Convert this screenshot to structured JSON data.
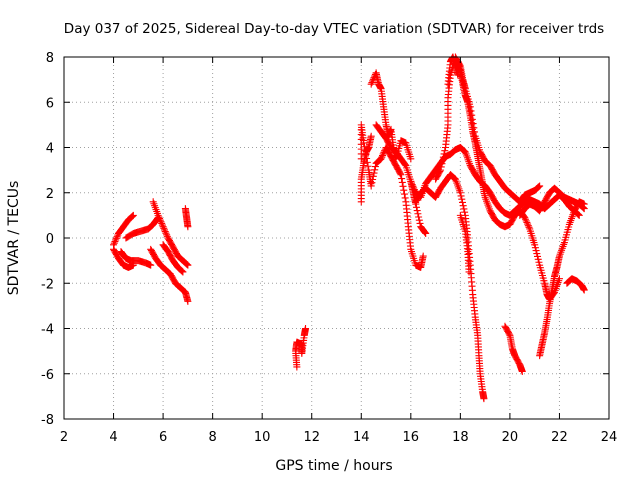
{
  "chart_data": {
    "type": "scatter",
    "title": "Day 037 of 2025, Sidereal Day-to-day VTEC variation (SDTVAR) for receiver trds",
    "xlabel": "GPS time / hours",
    "ylabel": "SDTVAR / TECUs",
    "xlim": [
      2,
      24
    ],
    "ylim": [
      -8,
      8
    ],
    "xticks": [
      "2",
      "4",
      "6",
      "8",
      "10",
      "12",
      "14",
      "16",
      "18",
      "20",
      "22",
      "24"
    ],
    "yticks": [
      "-8",
      "-6",
      "-4",
      "-2",
      "0",
      "2",
      "4",
      "6",
      "8"
    ],
    "grid": true,
    "marker": "+",
    "series": [
      {
        "name": "SDTVAR",
        "color": "#ff0000",
        "tracks": [
          [
            [
              4.0,
              -0.3
            ],
            [
              4.2,
              0.2
            ],
            [
              4.4,
              0.5
            ],
            [
              4.6,
              0.8
            ],
            [
              4.8,
              1.0
            ]
          ],
          [
            [
              4.0,
              -0.5
            ],
            [
              4.2,
              -0.9
            ],
            [
              4.4,
              -1.2
            ],
            [
              4.6,
              -1.3
            ],
            [
              4.8,
              -1.2
            ]
          ],
          [
            [
              4.3,
              -0.6
            ],
            [
              4.5,
              -0.9
            ],
            [
              4.7,
              -1.0
            ],
            [
              5.0,
              -1.0
            ],
            [
              5.3,
              -1.1
            ],
            [
              5.5,
              -1.2
            ]
          ],
          [
            [
              4.5,
              0.0
            ],
            [
              4.8,
              0.2
            ],
            [
              5.1,
              0.3
            ],
            [
              5.4,
              0.4
            ],
            [
              5.6,
              0.6
            ],
            [
              5.8,
              0.9
            ]
          ],
          [
            [
              5.6,
              1.6
            ],
            [
              5.8,
              1.0
            ],
            [
              6.0,
              0.5
            ],
            [
              6.2,
              0.0
            ],
            [
              6.4,
              -0.4
            ],
            [
              6.6,
              -0.8
            ],
            [
              6.8,
              -1.0
            ],
            [
              7.0,
              -1.2
            ]
          ],
          [
            [
              5.5,
              -0.5
            ],
            [
              5.7,
              -0.9
            ],
            [
              5.9,
              -1.2
            ],
            [
              6.1,
              -1.4
            ],
            [
              6.3,
              -1.6
            ],
            [
              6.5,
              -2.0
            ],
            [
              6.7,
              -2.2
            ],
            [
              6.9,
              -2.4
            ],
            [
              7.0,
              -2.8
            ]
          ],
          [
            [
              6.0,
              -0.3
            ],
            [
              6.2,
              -0.6
            ],
            [
              6.4,
              -1.0
            ],
            [
              6.6,
              -1.3
            ],
            [
              6.8,
              -1.5
            ]
          ],
          [
            [
              6.9,
              1.3
            ],
            [
              6.95,
              0.9
            ],
            [
              7.0,
              0.5
            ]
          ],
          [
            [
              11.4,
              -5.7
            ],
            [
              11.35,
              -5.0
            ],
            [
              11.4,
              -4.6
            ],
            [
              11.6,
              -4.7
            ],
            [
              11.6,
              -5.1
            ],
            [
              11.7,
              -4.3
            ],
            [
              11.75,
              -4.0
            ]
          ],
          [
            [
              14.0,
              1.6
            ],
            [
              14.0,
              2.6
            ],
            [
              14.1,
              3.3
            ],
            [
              14.2,
              3.8
            ],
            [
              14.3,
              4.0
            ],
            [
              14.4,
              4.5
            ]
          ],
          [
            [
              14.0,
              3.5
            ],
            [
              14.0,
              5.0
            ],
            [
              14.1,
              4.2
            ],
            [
              14.3,
              3.0
            ],
            [
              14.4,
              2.3
            ],
            [
              14.6,
              3.3
            ],
            [
              14.8,
              3.5
            ],
            [
              15.0,
              4.0
            ],
            [
              15.2,
              3.6
            ],
            [
              15.4,
              3.2
            ],
            [
              15.6,
              2.8
            ],
            [
              15.8,
              1.6
            ],
            [
              15.9,
              0.5
            ],
            [
              16.0,
              -0.5
            ],
            [
              16.2,
              -1.2
            ],
            [
              16.4,
              -1.3
            ],
            [
              16.5,
              -0.8
            ]
          ],
          [
            [
              14.4,
              6.8
            ],
            [
              14.6,
              7.3
            ],
            [
              14.7,
              6.8
            ],
            [
              14.8,
              6.6
            ],
            [
              14.9,
              5.8
            ],
            [
              15.0,
              5.0
            ],
            [
              15.1,
              4.5
            ],
            [
              15.2,
              4.8
            ],
            [
              15.3,
              4.0
            ],
            [
              15.4,
              3.5
            ],
            [
              15.6,
              4.3
            ],
            [
              15.8,
              4.2
            ],
            [
              16.0,
              3.5
            ]
          ],
          [
            [
              14.6,
              5.0
            ],
            [
              14.8,
              4.7
            ],
            [
              15.0,
              4.4
            ],
            [
              15.2,
              4.0
            ],
            [
              15.4,
              3.8
            ],
            [
              15.6,
              3.5
            ],
            [
              15.8,
              3.2
            ],
            [
              16.0,
              2.5
            ],
            [
              16.1,
              2.0
            ],
            [
              16.2,
              1.5
            ],
            [
              16.4,
              0.5
            ],
            [
              16.6,
              0.2
            ]
          ],
          [
            [
              16.0,
              2.5
            ],
            [
              16.2,
              2.0
            ],
            [
              16.4,
              1.8
            ],
            [
              16.6,
              2.4
            ],
            [
              16.8,
              2.7
            ],
            [
              17.0,
              3.0
            ],
            [
              17.2,
              3.3
            ],
            [
              17.4,
              3.6
            ],
            [
              17.6,
              3.7
            ],
            [
              17.8,
              3.9
            ],
            [
              18.0,
              4.0
            ],
            [
              18.2,
              3.8
            ],
            [
              18.4,
              3.2
            ],
            [
              18.6,
              2.8
            ],
            [
              18.8,
              2.5
            ],
            [
              19.0,
              2.3
            ],
            [
              19.2,
              2.0
            ],
            [
              19.4,
              1.6
            ],
            [
              19.6,
              1.3
            ],
            [
              19.8,
              1.1
            ],
            [
              20.0,
              1.0
            ],
            [
              20.2,
              1.2
            ],
            [
              20.4,
              1.4
            ],
            [
              20.6,
              1.6
            ],
            [
              20.8,
              1.7
            ],
            [
              21.0,
              1.6
            ],
            [
              21.2,
              1.5
            ],
            [
              21.4,
              1.3
            ],
            [
              21.6,
              1.5
            ],
            [
              21.8,
              1.7
            ],
            [
              22.0,
              1.9
            ],
            [
              22.2,
              1.7
            ],
            [
              22.4,
              1.4
            ],
            [
              22.6,
              1.2
            ],
            [
              22.8,
              1.0
            ]
          ],
          [
            [
              16.2,
              1.6
            ],
            [
              16.4,
              2.0
            ],
            [
              16.6,
              2.2
            ],
            [
              16.8,
              2.0
            ],
            [
              17.0,
              1.8
            ],
            [
              17.2,
              2.2
            ],
            [
              17.4,
              2.5
            ],
            [
              17.6,
              2.8
            ],
            [
              17.8,
              2.6
            ],
            [
              18.0,
              2.0
            ],
            [
              18.2,
              1.0
            ],
            [
              18.3,
              0.0
            ],
            [
              18.4,
              -1.2
            ],
            [
              18.5,
              -2.5
            ],
            [
              18.6,
              -3.5
            ],
            [
              18.7,
              -4.3
            ],
            [
              18.75,
              -5.2
            ],
            [
              18.8,
              -6.0
            ],
            [
              18.9,
              -6.8
            ],
            [
              18.95,
              -7.1
            ]
          ],
          [
            [
              17.0,
              2.6
            ],
            [
              17.2,
              3.0
            ],
            [
              17.4,
              4.0
            ],
            [
              17.5,
              5.0
            ],
            [
              17.5,
              6.2
            ],
            [
              17.6,
              7.2
            ],
            [
              17.8,
              8.0
            ],
            [
              18.0,
              7.6
            ],
            [
              18.1,
              7.0
            ],
            [
              18.2,
              6.6
            ],
            [
              18.4,
              5.8
            ],
            [
              18.6,
              4.5
            ],
            [
              18.8,
              3.8
            ],
            [
              19.0,
              3.4
            ],
            [
              19.2,
              3.2
            ],
            [
              19.4,
              2.8
            ],
            [
              19.6,
              2.5
            ],
            [
              19.8,
              2.2
            ],
            [
              20.0,
              2.0
            ],
            [
              20.2,
              1.8
            ],
            [
              20.4,
              1.6
            ],
            [
              20.6,
              1.9
            ],
            [
              20.8,
              2.0
            ],
            [
              21.0,
              2.1
            ],
            [
              21.2,
              2.3
            ]
          ],
          [
            [
              17.5,
              6.8
            ],
            [
              17.6,
              7.8
            ],
            [
              17.7,
              8.0
            ],
            [
              17.8,
              7.6
            ],
            [
              17.9,
              7.2
            ]
          ],
          [
            [
              17.9,
              7.8
            ],
            [
              18.0,
              7.4
            ],
            [
              18.1,
              6.8
            ],
            [
              18.2,
              6.3
            ],
            [
              18.3,
              6.0
            ],
            [
              18.4,
              5.4
            ],
            [
              18.5,
              4.7
            ],
            [
              18.6,
              4.2
            ],
            [
              18.7,
              3.6
            ],
            [
              18.8,
              3.0
            ],
            [
              18.9,
              2.4
            ],
            [
              19.0,
              1.8
            ],
            [
              19.2,
              1.2
            ],
            [
              19.4,
              0.8
            ],
            [
              19.6,
              0.6
            ],
            [
              19.8,
              0.5
            ],
            [
              20.0,
              0.6
            ],
            [
              20.2,
              1.0
            ],
            [
              20.4,
              1.2
            ],
            [
              20.6,
              0.9
            ],
            [
              20.8,
              0.4
            ],
            [
              21.0,
              -0.3
            ],
            [
              21.2,
              -1.2
            ],
            [
              21.4,
              -2.0
            ],
            [
              21.5,
              -2.5
            ],
            [
              21.6,
              -2.7
            ],
            [
              21.8,
              -2.4
            ],
            [
              22.0,
              -1.8
            ]
          ],
          [
            [
              18.0,
              1.0
            ],
            [
              18.2,
              0.3
            ],
            [
              18.3,
              -0.6
            ],
            [
              18.35,
              -1.5
            ]
          ],
          [
            [
              19.8,
              -3.9
            ],
            [
              20.0,
              -4.3
            ],
            [
              20.1,
              -4.9
            ],
            [
              20.2,
              -5.2
            ],
            [
              20.4,
              -5.6
            ],
            [
              20.5,
              -5.9
            ]
          ],
          [
            [
              21.2,
              -5.2
            ],
            [
              21.3,
              -4.7
            ],
            [
              21.4,
              -4.2
            ],
            [
              21.5,
              -3.6
            ],
            [
              21.6,
              -2.9
            ],
            [
              21.7,
              -2.3
            ],
            [
              21.8,
              -1.7
            ],
            [
              21.9,
              -1.3
            ],
            [
              22.0,
              -0.8
            ],
            [
              22.2,
              -0.2
            ],
            [
              22.4,
              0.6
            ],
            [
              22.6,
              1.2
            ],
            [
              22.8,
              1.6
            ],
            [
              23.0,
              1.5
            ]
          ],
          [
            [
              20.4,
              1.0
            ],
            [
              20.6,
              1.3
            ],
            [
              20.8,
              1.5
            ],
            [
              21.0,
              1.4
            ],
            [
              21.2,
              1.2
            ],
            [
              21.4,
              1.6
            ],
            [
              21.6,
              2.0
            ],
            [
              21.8,
              2.2
            ],
            [
              22.0,
              2.0
            ],
            [
              22.2,
              1.8
            ],
            [
              22.4,
              1.7
            ],
            [
              22.6,
              1.6
            ],
            [
              22.8,
              1.5
            ],
            [
              23.0,
              1.3
            ]
          ],
          [
            [
              22.3,
              -2.0
            ],
            [
              22.5,
              -1.8
            ],
            [
              22.7,
              -1.9
            ],
            [
              22.9,
              -2.1
            ],
            [
              23.0,
              -2.3
            ]
          ]
        ]
      }
    ]
  }
}
